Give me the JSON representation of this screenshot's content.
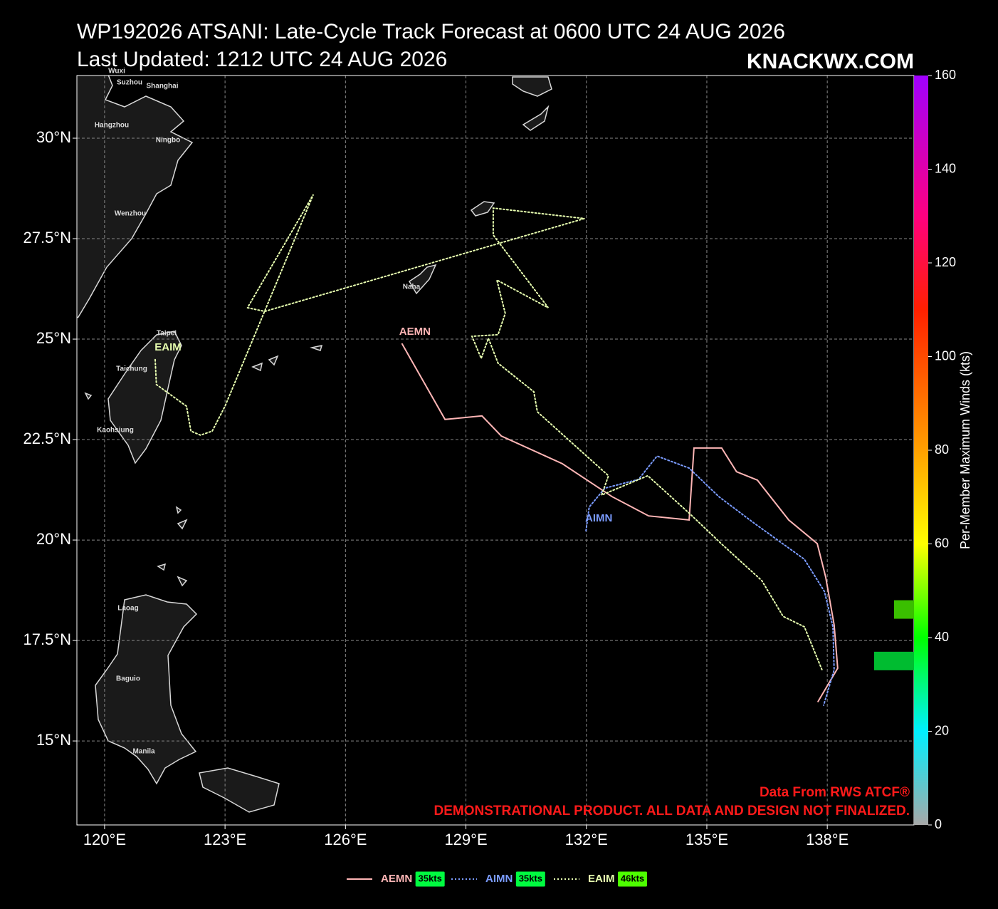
{
  "title": "WP192026 ATSANI: Late-Cycle Track Forecast at 0600 UTC 24 AUG 2026",
  "subtitle": "Last Updated: 1212 UTC 24 AUG 2026",
  "brand": "KNACKWX.COM",
  "source_note": "Data From RWS ATCF®",
  "disclaimer": "DEMONSTRATIONAL PRODUCT. ALL DATA AND DESIGN NOT FINALIZED.",
  "cities": [
    "Wuxi",
    "Suzhou",
    "Shanghai",
    "Hangzhou",
    "Ningbo",
    "Wenzhou",
    "Naha",
    "Taipei",
    "Taichung",
    "Kaohsiung",
    "Laoag",
    "Baguio",
    "Manila"
  ],
  "chart_data": {
    "type": "track",
    "xlim": [
      119.31,
      140.16
    ],
    "ylim": [
      12.91,
      31.56
    ],
    "xticks": [
      {
        "value": 120,
        "label": "120°E"
      },
      {
        "value": 123,
        "label": "123°E"
      },
      {
        "value": 126,
        "label": "126°E"
      },
      {
        "value": 129,
        "label": "129°E"
      },
      {
        "value": 132,
        "label": "132°E"
      },
      {
        "value": 135,
        "label": "135°E"
      },
      {
        "value": 138,
        "label": "138°E"
      }
    ],
    "yticks": [
      {
        "value": 15,
        "label": "15°N"
      },
      {
        "value": 17.5,
        "label": "17.5°N"
      },
      {
        "value": 20,
        "label": "20°N"
      },
      {
        "value": 22.5,
        "label": "22.5°N"
      },
      {
        "value": 25,
        "label": "25°N"
      },
      {
        "value": 27.5,
        "label": "27.5°N"
      },
      {
        "value": 30,
        "label": "30°N"
      }
    ],
    "grid": true,
    "colorbar_label": "Per-Member Maximum Winds (kts)",
    "clim": [
      0,
      160
    ],
    "cticks": [
      0,
      20,
      40,
      60,
      80,
      100,
      120,
      140,
      160
    ],
    "member_counts": [
      {
        "max_wind": 46,
        "count": 1
      },
      {
        "max_wind": 35,
        "count": 2
      }
    ],
    "series": [
      {
        "name": "AEMN",
        "color": "#ffb6b6",
        "dash": "solid",
        "max_wind": 35,
        "max_wind_label": "35kts",
        "lon": [
          127.41,
          128.48,
          129.4,
          129.88,
          131.4,
          132.64,
          133.55,
          134.56,
          134.68,
          135.37,
          135.74,
          136.26,
          137.04,
          137.75,
          137.96,
          138.17,
          138.26,
          137.77
        ],
        "lat": [
          24.88,
          23.0,
          23.09,
          22.59,
          21.9,
          21.08,
          20.6,
          20.5,
          22.29,
          22.29,
          21.7,
          21.49,
          20.5,
          19.91,
          19.08,
          17.89,
          16.81,
          15.98
        ]
      },
      {
        "name": "AIMN",
        "color": "#7b9cff",
        "dash": "dotted",
        "max_wind": 35,
        "max_wind_label": "35kts",
        "lon": [
          131.99,
          132.07,
          132.46,
          133.3,
          133.76,
          134.56,
          135.3,
          136.19,
          137.43,
          137.93,
          138.14,
          138.17,
          137.91
        ],
        "lat": [
          20.23,
          20.82,
          21.29,
          21.51,
          22.09,
          21.79,
          21.08,
          20.41,
          19.52,
          18.72,
          17.84,
          16.77,
          15.89
        ]
      },
      {
        "name": "EAIM",
        "color": "#e8ffb0",
        "dash": "dotted",
        "max_wind": 46,
        "max_wind_label": "46kts",
        "lon": [
          121.26,
          121.29,
          122.04,
          122.15,
          122.39,
          122.68,
          123.0,
          125.2,
          123.56,
          123.99,
          131.95,
          129.68,
          129.68,
          131.05,
          129.77,
          129.98,
          129.8,
          129.15,
          129.38,
          129.56,
          129.8,
          130.69,
          130.78,
          132.55,
          132.38,
          133.53,
          134.56,
          135.39,
          136.37,
          136.9,
          137.43,
          137.87
        ],
        "lat": [
          24.49,
          23.87,
          23.33,
          22.71,
          22.61,
          22.71,
          23.33,
          28.6,
          25.78,
          25.69,
          28.0,
          28.26,
          27.59,
          25.78,
          26.47,
          25.64,
          25.11,
          25.07,
          24.52,
          25.02,
          24.4,
          23.69,
          23.19,
          21.6,
          21.12,
          21.6,
          20.67,
          19.88,
          18.99,
          18.1,
          17.84,
          16.77
        ]
      }
    ]
  }
}
